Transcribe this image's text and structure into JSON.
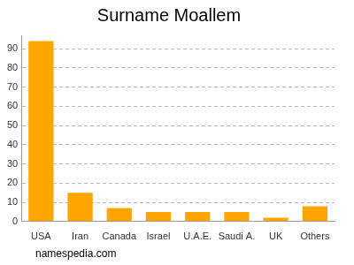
{
  "chart_data": {
    "type": "bar",
    "title": "Surname Moallem",
    "categories": [
      "USA",
      "Iran",
      "Canada",
      "Israel",
      "U.A.E.",
      "Saudi A.",
      "UK",
      "Others"
    ],
    "values": [
      94,
      15,
      7,
      5,
      5,
      5,
      2,
      8
    ],
    "color": "#ffa500",
    "ylim": [
      0,
      97
    ],
    "yticks": [
      0,
      10,
      20,
      30,
      40,
      50,
      60,
      70,
      80,
      90
    ],
    "grid": true,
    "annotations": [
      "namespedia.com"
    ]
  }
}
